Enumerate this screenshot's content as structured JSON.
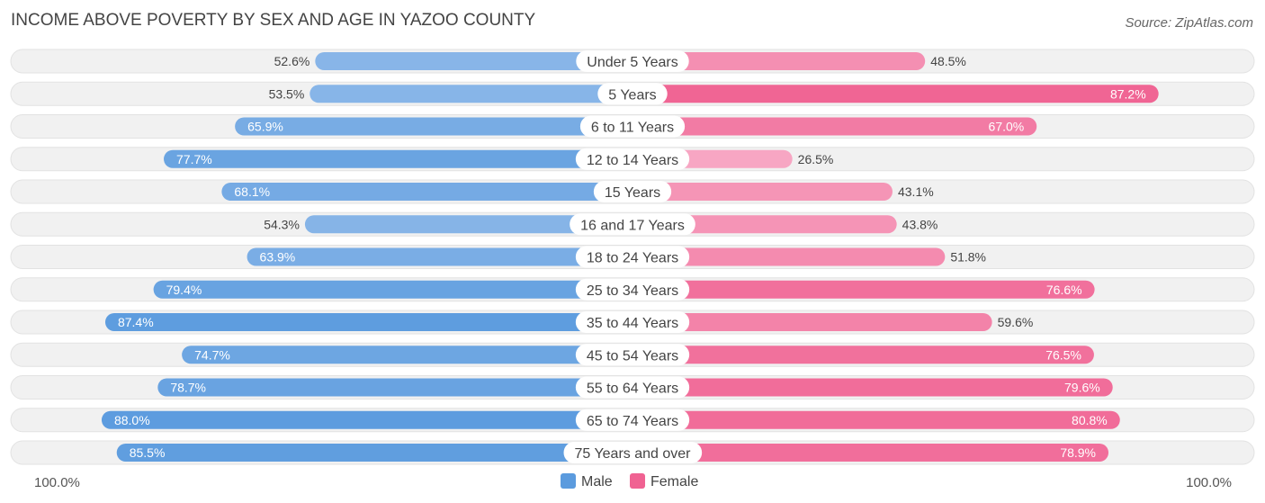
{
  "chart_data": {
    "type": "bar",
    "orientation": "horizontal-diverging",
    "title": "INCOME ABOVE POVERTY BY SEX AND AGE IN YAZOO COUNTY",
    "source": "Source: ZipAtlas.com",
    "categories": [
      "Under 5 Years",
      "5 Years",
      "6 to 11 Years",
      "12 to 14 Years",
      "15 Years",
      "16 and 17 Years",
      "18 to 24 Years",
      "25 to 34 Years",
      "35 to 44 Years",
      "45 to 54 Years",
      "55 to 64 Years",
      "65 to 74 Years",
      "75 Years and over"
    ],
    "series": [
      {
        "name": "Male",
        "values": [
          52.6,
          53.5,
          65.9,
          77.7,
          68.1,
          54.3,
          63.9,
          79.4,
          87.4,
          74.7,
          78.7,
          88.0,
          85.5
        ]
      },
      {
        "name": "Female",
        "values": [
          48.5,
          87.2,
          67.0,
          26.5,
          43.1,
          43.8,
          51.8,
          76.6,
          59.6,
          76.5,
          79.6,
          80.8,
          78.9
        ]
      }
    ],
    "value_suffix": "%",
    "axis_min_label": "100.0%",
    "axis_max_label": "100.0%",
    "xlim": [
      0,
      100
    ],
    "legend": [
      "Male",
      "Female"
    ],
    "legend_position": "bottom-center",
    "colors": {
      "male_dark": "#5b9bde",
      "male_light": "#a9c9ef",
      "female_dark": "#f06292",
      "female_light": "#f7a8c4",
      "track": "#f1f1f1",
      "title": "#444444",
      "text": "#444444"
    }
  }
}
